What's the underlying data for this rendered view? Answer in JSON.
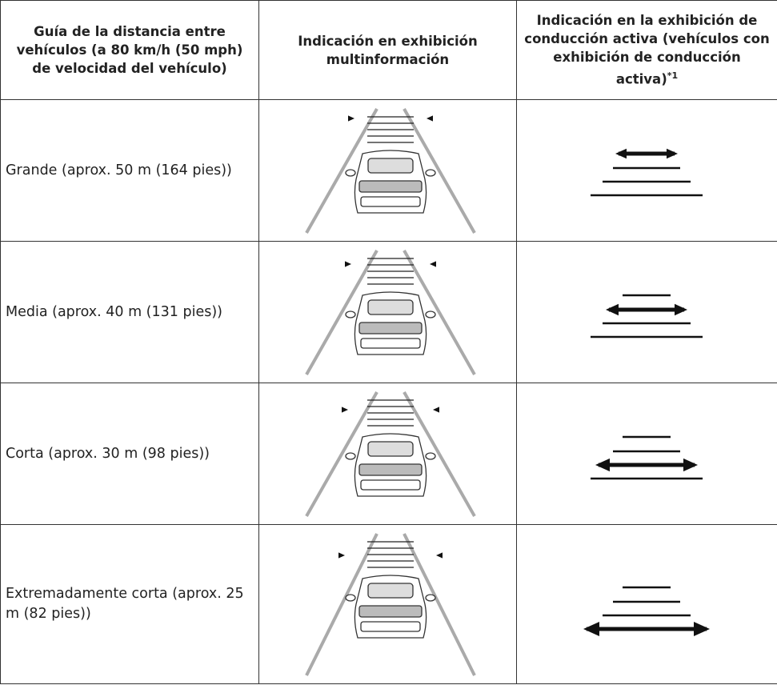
{
  "table": {
    "header": [
      "Guía de la distancia entre vehículos (a 80 km/h (50 mph) de velocidad del vehículo)",
      "Indicación en exhibición multinformación",
      "Indicación en la exhibición de conducción activa (vehículos con exhibición de conducción activa)"
    ],
    "header_note": "*1",
    "rows": [
      "Grande (aprox. 50 m (164 pies))",
      "Media (aprox. 40 m (131 pies))",
      "Corta (aprox. 30 m (98 pies))",
      "Extremadamente corta (aprox. 25 m (82 pies))"
    ]
  }
}
